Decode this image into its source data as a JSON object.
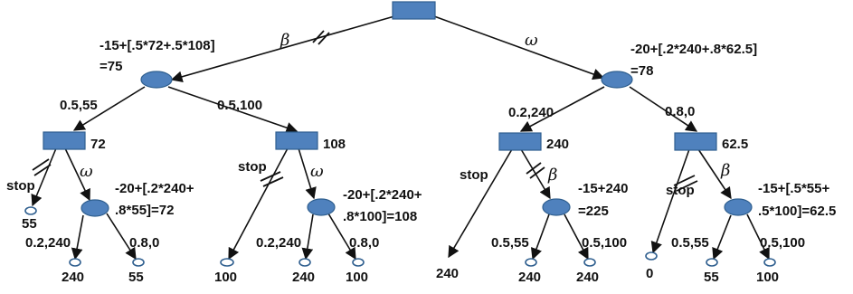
{
  "colors": {
    "node_fill": "#4f81bd",
    "node_stroke": "#2f5f8f",
    "line": "#111111"
  },
  "top": {
    "left_action": "β",
    "right_action": "ω"
  },
  "left_chance": {
    "calc_line1": "-15+[.5*72+.5*108]",
    "calc_line2": "=75",
    "edge_a": "0.5,55",
    "edge_b": "0.5,100",
    "d1": {
      "value": "72",
      "stop_label": "stop",
      "stop_value": "55",
      "action": "ω",
      "calc_line1": "-20+[.2*240+",
      "calc_line2": ".8*55]=72",
      "out_a": "0.2,240",
      "out_b": "0.8,0",
      "leaf_a": "240",
      "leaf_b": "55"
    },
    "d2": {
      "value": "108",
      "stop_label": "stop",
      "stop_value": "100",
      "action": "ω",
      "calc_line1": "-20+[.2*240+",
      "calc_line2": ".8*100]=108",
      "out_a": "0.2,240",
      "out_b": "0.8,0",
      "leaf_a": "240",
      "leaf_b": "100"
    }
  },
  "right_chance": {
    "calc_line1": "-20+[.2*240+.8*62.5]",
    "calc_line2": "=78",
    "edge_a": "0.2,240",
    "edge_b": "0.8,0",
    "d3": {
      "value": "240",
      "stop_label": "stop",
      "stop_value": "240",
      "action": "β",
      "calc_line1": "-15+240",
      "calc_line2": "=225",
      "out_a": "0.5,55",
      "out_b": "0.5,100",
      "leaf_a": "240",
      "leaf_b": "240"
    },
    "d4": {
      "value": "62.5",
      "stop_label": "stop",
      "stop_value": "0",
      "action": "β",
      "calc_line1": "-15+[.5*55+",
      "calc_line2": ".5*100]=62.5",
      "out_a": "0.5,55",
      "out_b": "0.5,100",
      "leaf_a": "55",
      "leaf_b": "100"
    }
  }
}
